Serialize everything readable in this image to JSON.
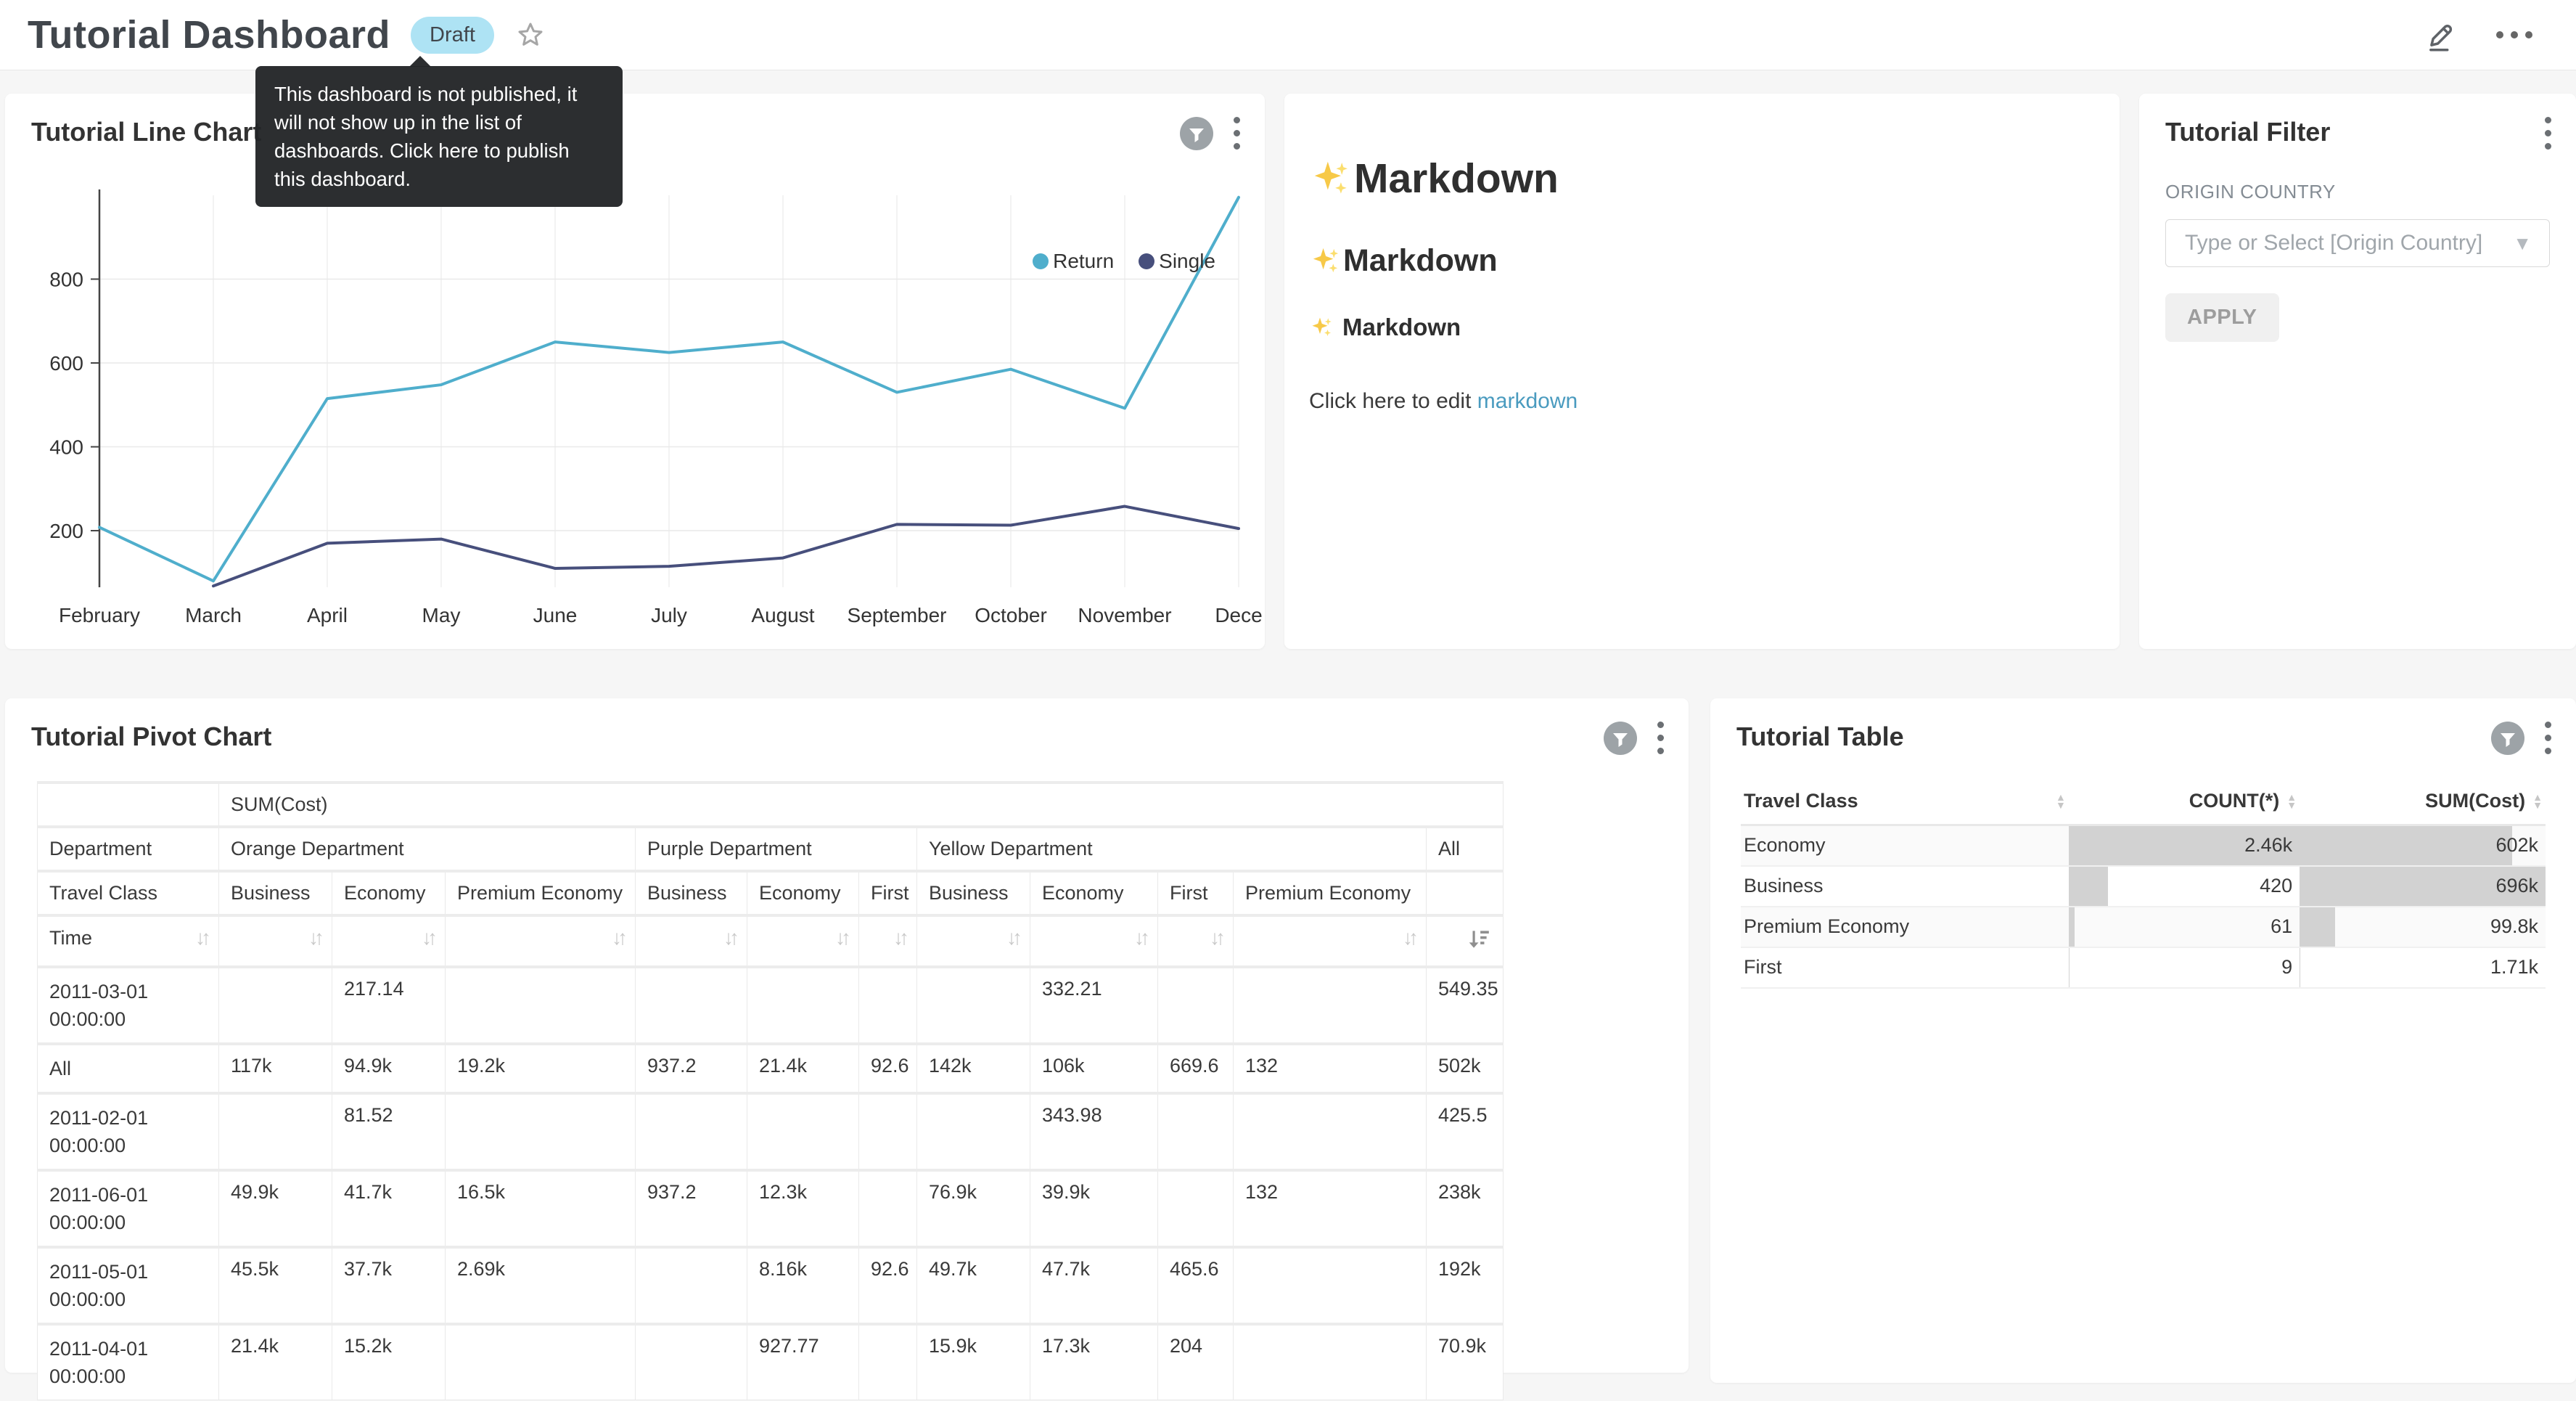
{
  "header": {
    "title": "Tutorial Dashboard",
    "badge": "Draft",
    "tooltip": "This dashboard is not published, it will not show up in the list of dashboards. Click here to publish this dashboard."
  },
  "line_chart": {
    "title": "Tutorial Line Chart",
    "chart_data": {
      "type": "line",
      "x": [
        "February",
        "March",
        "April",
        "May",
        "June",
        "July",
        "August",
        "September",
        "October",
        "November",
        "Dece"
      ],
      "series": [
        {
          "name": "Return",
          "color": "#4FAECC",
          "values": [
            208,
            80,
            515,
            548,
            650,
            625,
            650,
            530,
            585,
            492,
            995
          ]
        },
        {
          "name": "Single",
          "color": "#474F7C",
          "values": [
            null,
            68,
            170,
            180,
            110,
            115,
            135,
            215,
            213,
            258,
            205
          ]
        }
      ],
      "yticks": [
        "200",
        "400",
        "600",
        "800"
      ],
      "ylim": [
        65,
        1000
      ],
      "grid": true,
      "legend_position": "top-right"
    }
  },
  "markdown": {
    "emoji": "✨",
    "h1": "Markdown",
    "h2": "Markdown",
    "h3": "Markdown",
    "paragraph": "Click here to edit",
    "link": "markdown"
  },
  "filter": {
    "title": "Tutorial Filter",
    "field_label": "ORIGIN COUNTRY",
    "placeholder": "Type or Select [Origin Country]",
    "apply": "APPLY"
  },
  "pivot": {
    "title": "Tutorial Pivot Chart",
    "metric": "SUM(Cost)",
    "dept_row_label": "Department",
    "departments": [
      {
        "label": "Orange Department"
      },
      {
        "label": "Purple Department"
      },
      {
        "label": "Yellow Department"
      }
    ],
    "all_label": "All",
    "class_row_label": "Travel Class",
    "classes": [
      "Business",
      "Economy",
      "Premium Economy",
      "Business",
      "Economy",
      "First",
      "Business",
      "Economy",
      "First",
      "Premium Economy"
    ],
    "time_label": "Time",
    "rows": [
      {
        "l1": "2011-03-01",
        "l2": "00:00:00",
        "cells": [
          "",
          "217.14",
          "",
          "",
          "",
          "",
          "",
          "332.21",
          "",
          "",
          "549.35"
        ]
      },
      {
        "l1": "All",
        "l2": "",
        "cells": [
          "117k",
          "94.9k",
          "19.2k",
          "937.2",
          "21.4k",
          "92.6",
          "142k",
          "106k",
          "669.6",
          "132",
          "502k"
        ]
      },
      {
        "l1": "2011-02-01",
        "l2": "00:00:00",
        "cells": [
          "",
          "81.52",
          "",
          "",
          "",
          "",
          "",
          "343.98",
          "",
          "",
          "425.5"
        ]
      },
      {
        "l1": "2011-06-01",
        "l2": "00:00:00",
        "cells": [
          "49.9k",
          "41.7k",
          "16.5k",
          "937.2",
          "12.3k",
          "",
          "76.9k",
          "39.9k",
          "",
          "132",
          "238k"
        ]
      },
      {
        "l1": "2011-05-01",
        "l2": "00:00:00",
        "cells": [
          "45.5k",
          "37.7k",
          "2.69k",
          "",
          "8.16k",
          "92.6",
          "49.7k",
          "47.7k",
          "465.6",
          "",
          "192k"
        ]
      },
      {
        "l1": "2011-04-01",
        "l2": "00:00:00",
        "cells": [
          "21.4k",
          "15.2k",
          "",
          "",
          "927.77",
          "",
          "15.9k",
          "17.3k",
          "204",
          "",
          "70.9k"
        ]
      }
    ]
  },
  "table": {
    "title": "Tutorial Table",
    "columns": [
      "Travel Class",
      "COUNT(*)",
      "SUM(Cost)"
    ],
    "rows": [
      {
        "travel_class": "Economy",
        "count": "2.46k",
        "sum": "602k",
        "count_bar": "100%",
        "sum_bar": "86.5%"
      },
      {
        "travel_class": "Business",
        "count": "420",
        "sum": "696k",
        "count_bar": "17.1%",
        "sum_bar": "100%"
      },
      {
        "travel_class": "Premium Economy",
        "count": "61",
        "sum": "99.8k",
        "count_bar": "2.5%",
        "sum_bar": "14.3%"
      },
      {
        "travel_class": "First",
        "count": "9",
        "sum": "1.71k",
        "count_bar": "0.5%",
        "sum_bar": "0.3%"
      }
    ]
  }
}
